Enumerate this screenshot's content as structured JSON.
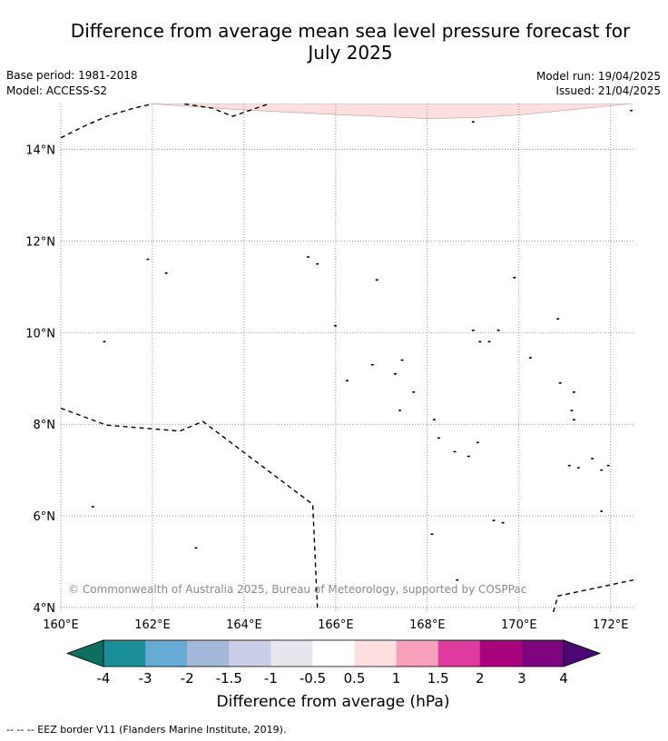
{
  "title_line1": "Difference from average mean sea level pressure forecast for",
  "title_line2": "July 2025",
  "info": {
    "base_period": "Base period: 1981-2018",
    "model": "Model: ACCESS-S2",
    "model_run": "Model run: 19/04/2025",
    "issued": "Issued: 21/04/2025"
  },
  "map": {
    "lon_range": [
      160,
      172.5
    ],
    "lat_range": [
      3.9,
      15.0
    ],
    "lon_ticks": [
      {
        "value": 160,
        "label": "160°E"
      },
      {
        "value": 162,
        "label": "162°E"
      },
      {
        "value": 164,
        "label": "164°E"
      },
      {
        "value": 166,
        "label": "166°E"
      },
      {
        "value": 168,
        "label": "168°E"
      },
      {
        "value": 170,
        "label": "170°E"
      },
      {
        "value": 172,
        "label": "172°E"
      }
    ],
    "lat_ticks": [
      {
        "value": 4,
        "label": "4°N"
      },
      {
        "value": 6,
        "label": "6°N"
      },
      {
        "value": 8,
        "label": "8°N"
      },
      {
        "value": 10,
        "label": "10°N"
      },
      {
        "value": 12,
        "label": "12°N"
      },
      {
        "value": 14,
        "label": "14°N"
      }
    ],
    "copyright": "© Commonwealth of Australia 2025, Bureau of Meteorology, supported by COSPPac",
    "positive_anomaly_band": {
      "color": "#fddfe0",
      "lower_edge": [
        [
          161.9,
          15.0
        ],
        [
          164.0,
          14.86
        ],
        [
          166.0,
          14.76
        ],
        [
          168.0,
          14.67
        ],
        [
          169.0,
          14.69
        ],
        [
          170.0,
          14.75
        ],
        [
          171.5,
          14.9
        ],
        [
          172.5,
          15.0
        ]
      ]
    },
    "eez_borders": [
      [
        [
          160.0,
          14.25
        ],
        [
          160.5,
          14.5
        ],
        [
          161.0,
          14.72
        ],
        [
          161.6,
          14.9
        ],
        [
          162.0,
          14.99
        ]
      ],
      [
        [
          162.7,
          14.99
        ],
        [
          163.3,
          14.9
        ],
        [
          163.75,
          14.72
        ],
        [
          164.5,
          14.98
        ]
      ],
      [
        [
          160.0,
          8.35
        ],
        [
          161.0,
          7.98
        ],
        [
          162.6,
          7.85
        ],
        [
          163.1,
          8.06
        ],
        [
          165.5,
          6.25
        ],
        [
          165.6,
          4.0
        ]
      ],
      [
        [
          170.75,
          3.9
        ],
        [
          170.85,
          4.25
        ],
        [
          172.5,
          4.6
        ]
      ]
    ],
    "islands": [
      [
        161.9,
        11.6
      ],
      [
        162.3,
        11.3
      ],
      [
        160.95,
        9.8
      ],
      [
        160.7,
        6.2
      ],
      [
        162.95,
        5.3
      ],
      [
        165.4,
        11.65
      ],
      [
        165.6,
        11.5
      ],
      [
        165.99,
        10.15
      ],
      [
        166.9,
        11.15
      ],
      [
        166.25,
        8.95
      ],
      [
        166.8,
        9.3
      ],
      [
        167.3,
        9.1
      ],
      [
        167.45,
        9.4
      ],
      [
        167.7,
        8.7
      ],
      [
        167.4,
        8.3
      ],
      [
        168.15,
        8.1
      ],
      [
        168.25,
        7.7
      ],
      [
        168.6,
        7.4
      ],
      [
        168.9,
        7.3
      ],
      [
        169.1,
        7.6
      ],
      [
        169.0,
        10.05
      ],
      [
        169.15,
        9.8
      ],
      [
        169.55,
        10.05
      ],
      [
        169.35,
        9.8
      ],
      [
        169.9,
        11.2
      ],
      [
        170.25,
        9.45
      ],
      [
        170.85,
        10.3
      ],
      [
        170.9,
        8.9
      ],
      [
        171.2,
        8.7
      ],
      [
        171.15,
        8.3
      ],
      [
        171.2,
        8.1
      ],
      [
        171.1,
        7.1
      ],
      [
        171.3,
        7.05
      ],
      [
        171.6,
        7.25
      ],
      [
        171.8,
        7.0
      ],
      [
        171.95,
        7.1
      ],
      [
        171.8,
        6.1
      ],
      [
        169.45,
        5.9
      ],
      [
        169.65,
        5.85
      ],
      [
        168.1,
        5.6
      ],
      [
        168.65,
        4.6
      ],
      [
        169.0,
        14.6
      ],
      [
        172.45,
        14.85
      ]
    ]
  },
  "colorbar": {
    "label": "Difference from average (hPa)",
    "colors": [
      "#0d6e62",
      "#1b8f97",
      "#66abd3",
      "#a4b8da",
      "#cacde6",
      "#e8e6ed",
      "#ffffff",
      "#fddfe0",
      "#f79fbb",
      "#de3b9f",
      "#a9047d",
      "#7e0480",
      "#4a0875"
    ],
    "tick_labels": [
      "-4",
      "-3",
      "-2",
      "-1.5",
      "-1",
      "-0.5",
      "0.5",
      "1",
      "1.5",
      "2",
      "3",
      "4"
    ]
  },
  "legend_footer": "-- -- -- EEZ border V11 (Flanders Marine Institute, 2019)."
}
